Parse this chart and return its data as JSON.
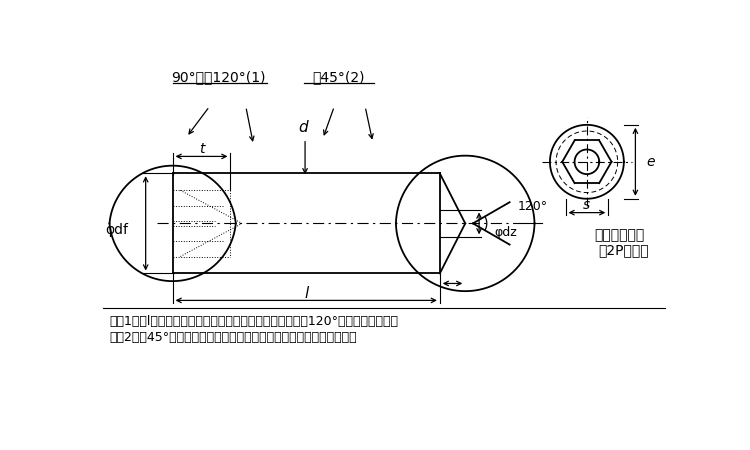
{
  "bg_color": "#ffffff",
  "line_color": "#000000",
  "fig_width": 7.5,
  "fig_height": 4.5,
  "note1": "注（1）　lが下の表に示す階段状の点線より短いものは、120°の面取りとする。",
  "note2": "　（2）　45°の角度は、おねじの谷の径より下の傾斜部に適用する。",
  "label_90_120": "90°又は120°(1)",
  "label_45": "約45°(2)",
  "label_t": "t",
  "label_d": "d",
  "label_df": "φdf",
  "label_dz": "φdz",
  "label_l": "l",
  "label_120": "120°",
  "label_e": "e",
  "label_s": "s",
  "label_incomplete": "不完全ねじ部",
  "label_2p": "（2P以下）"
}
